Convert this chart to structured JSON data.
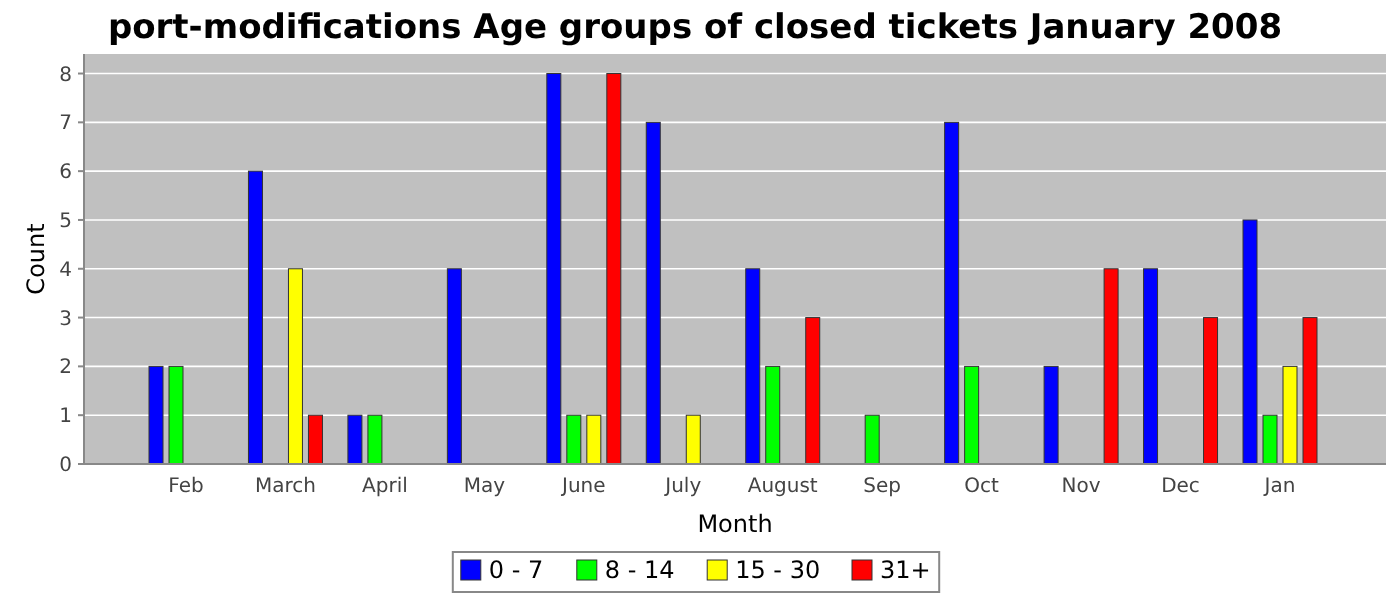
{
  "chart_data": {
    "type": "bar",
    "title": "port-modifications Age groups of closed tickets January 2008",
    "xlabel": "Month",
    "ylabel": "Count",
    "categories": [
      "Feb",
      "March",
      "April",
      "May",
      "June",
      "July",
      "August",
      "Sep",
      "Oct",
      "Nov",
      "Dec",
      "Jan"
    ],
    "series": [
      {
        "name": "0 - 7",
        "color": "#0000ff",
        "values": [
          2,
          6,
          1,
          4,
          8,
          7,
          4,
          0,
          7,
          2,
          4,
          5
        ]
      },
      {
        "name": "8 - 14",
        "color": "#00ff00",
        "values": [
          2,
          0,
          1,
          0,
          1,
          0,
          2,
          1,
          2,
          0,
          0,
          1
        ]
      },
      {
        "name": "15 - 30",
        "color": "#ffff00",
        "values": [
          0,
          4,
          0,
          0,
          1,
          1,
          0,
          0,
          0,
          0,
          0,
          2
        ]
      },
      {
        "name": "31+",
        "color": "#ff0000",
        "values": [
          0,
          1,
          0,
          0,
          8,
          0,
          3,
          0,
          0,
          4,
          3,
          3
        ]
      }
    ],
    "ylim": [
      0,
      8.4
    ],
    "yticks": [
      0,
      1,
      2,
      3,
      4,
      5,
      6,
      7,
      8
    ],
    "grid": "y",
    "legend": "bottom"
  }
}
